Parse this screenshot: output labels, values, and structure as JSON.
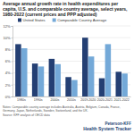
{
  "chart_data": {
    "type": "bar",
    "title": "Average annual growth rate in health expenditures per capita, U.S. and comparable country average, select years, 1980-2022 (current prices and PPP adjusted)",
    "categories": [
      "1980s",
      "1990s",
      "2000s",
      "2010s",
      "2019-2020",
      "2020-2021",
      "2021-2022"
    ],
    "series": [
      {
        "name": "United States",
        "color": "#243f73",
        "values": [
          8.9,
          5.6,
          6.4,
          3.3,
          10.0,
          3.1,
          4.2
        ]
      },
      {
        "name": "Comparable Country Average",
        "color": "#74a9d8",
        "values": [
          8.2,
          5.1,
          5.5,
          2.8,
          6.8,
          8.9,
          3.9
        ]
      }
    ],
    "ylim": [
      0,
      12
    ],
    "yticks": [
      {
        "value": 0,
        "label": "0%"
      },
      {
        "value": 2,
        "label": "2%"
      },
      {
        "value": 4,
        "label": "4%"
      },
      {
        "value": 6,
        "label": "6%"
      },
      {
        "value": 8,
        "label": "8%"
      },
      {
        "value": 10,
        "label": "10%"
      },
      {
        "value": 12,
        "label": "12%"
      }
    ],
    "grid": true,
    "legend": "top",
    "annotations": [
      "Notes: Comparable country average includes Australia, Austria, Belgium, Canada, France, Germany, Japan, Netherlands, Sweden, Switzerland, and the UK.",
      "Source: KFF analysis of OECD data",
      "Peterson-KFF",
      "Health System Tracker"
    ]
  }
}
